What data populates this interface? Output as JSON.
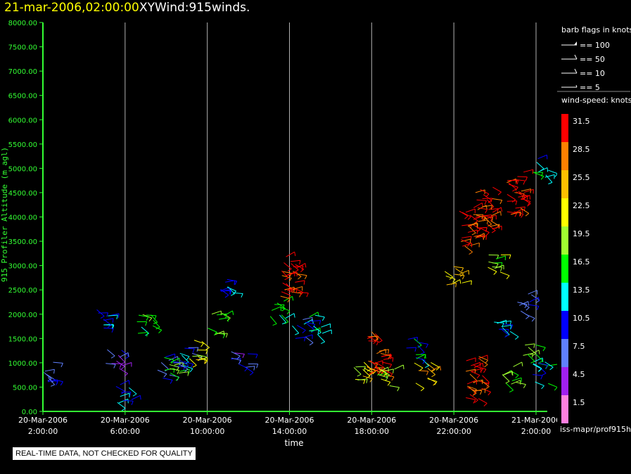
{
  "header": {
    "date": "21-mar-2006,02:00:00",
    "title": "XYWind:915winds."
  },
  "notice": "REAL-TIME DATA, NOT CHECKED FOR QUALITY",
  "source": "iss-mapr/prof915h",
  "colors": {
    "axis": "#33ff33",
    "gridline": "#b0b0b0",
    "notice_bg": "#ffffff"
  },
  "barb_legend": {
    "title": "barb flags in knots",
    "items": [
      "== 100",
      "== 50",
      "== 10",
      "== 5"
    ]
  },
  "speed_legend": {
    "title": "wind-speed: knots",
    "labels": [
      "31.5",
      "28.5",
      "25.5",
      "22.5",
      "19.5",
      "16.5",
      "13.5",
      "10.5",
      "7.5",
      "4.5",
      "1.5"
    ],
    "colors": [
      "#ff0000",
      "#ff8000",
      "#ffc000",
      "#ffff00",
      "#a0ff30",
      "#00ff00",
      "#00ffff",
      "#0000ff",
      "#6080ff",
      "#a020f0",
      "#ff80e0"
    ]
  },
  "chart_data": {
    "type": "scatter",
    "title": "XYWind:915winds.",
    "xlabel": "time",
    "ylabel": "915 Profiler Altitude (m agl)",
    "ylim": [
      0,
      8000
    ],
    "xlim": [
      "20-Mar-2006 2:00:00",
      "21-Mar-2006 3:00:00"
    ],
    "yticks": [
      "0.00",
      "500.00",
      "1000.00",
      "1500.00",
      "2000.00",
      "2500.00",
      "3000.00",
      "3500.00",
      "4000.00",
      "4500.00",
      "5000.00",
      "5500.00",
      "6000.00",
      "6500.00",
      "7000.00",
      "7500.00",
      "8000.00"
    ],
    "xticks": [
      {
        "date": "20-Mar-2006",
        "time": "2:00:00",
        "hours": 0
      },
      {
        "date": "20-Mar-2006",
        "time": "6:00:00",
        "hours": 4
      },
      {
        "date": "20-Mar-2006",
        "time": "10:00:00",
        "hours": 8
      },
      {
        "date": "20-Mar-2006",
        "time": "14:00:00",
        "hours": 12
      },
      {
        "date": "20-Mar-2006",
        "time": "18:00:00",
        "hours": 16
      },
      {
        "date": "20-Mar-2006",
        "time": "22:00:00",
        "hours": 20
      },
      {
        "date": "21-Mar-2006",
        "time": "2:00:00",
        "hours": 24
      }
    ],
    "grid": true,
    "series": [
      {
        "points": [
          {
            "hours": 0.1,
            "alt": 800,
            "speed": 10
          },
          {
            "hours": 3.0,
            "alt": 1900,
            "speed": 12
          },
          {
            "hours": 3.5,
            "alt": 1050,
            "speed": 7
          },
          {
            "hours": 4.0,
            "alt": 400,
            "speed": 12
          },
          {
            "hours": 5.0,
            "alt": 1800,
            "speed": 17
          },
          {
            "hours": 6.0,
            "alt": 900,
            "speed": 9
          },
          {
            "hours": 6.3,
            "alt": 1000,
            "speed": 18
          },
          {
            "hours": 7.0,
            "alt": 1100,
            "speed": 10
          },
          {
            "hours": 7.5,
            "alt": 1250,
            "speed": 22
          },
          {
            "hours": 8.4,
            "alt": 1800,
            "speed": 18
          },
          {
            "hours": 9.0,
            "alt": 2550,
            "speed": 12
          },
          {
            "hours": 9.6,
            "alt": 1100,
            "speed": 8
          },
          {
            "hours": 11.5,
            "alt": 2100,
            "speed": 17
          },
          {
            "hours": 12.0,
            "alt": 2800,
            "speed": 31
          },
          {
            "hours": 12.5,
            "alt": 1700,
            "speed": 10
          },
          {
            "hours": 13.3,
            "alt": 1800,
            "speed": 14
          },
          {
            "hours": 15.5,
            "alt": 800,
            "speed": 22
          },
          {
            "hours": 16.2,
            "alt": 1200,
            "speed": 30
          },
          {
            "hours": 16.7,
            "alt": 700,
            "speed": 19
          },
          {
            "hours": 18.0,
            "alt": 1300,
            "speed": 13
          },
          {
            "hours": 18.5,
            "alt": 800,
            "speed": 25
          },
          {
            "hours": 20.0,
            "alt": 2800,
            "speed": 24
          },
          {
            "hours": 20.7,
            "alt": 3800,
            "speed": 30
          },
          {
            "hours": 21.0,
            "alt": 700,
            "speed": 31
          },
          {
            "hours": 21.5,
            "alt": 4200,
            "speed": 31
          },
          {
            "hours": 22.0,
            "alt": 3000,
            "speed": 20
          },
          {
            "hours": 22.3,
            "alt": 1800,
            "speed": 12
          },
          {
            "hours": 22.7,
            "alt": 700,
            "speed": 20
          },
          {
            "hours": 23.0,
            "alt": 4500,
            "speed": 31
          },
          {
            "hours": 23.4,
            "alt": 2200,
            "speed": 9
          },
          {
            "hours": 23.8,
            "alt": 1200,
            "speed": 16
          },
          {
            "hours": 24.2,
            "alt": 800,
            "speed": 14
          },
          {
            "hours": 24.3,
            "alt": 5000,
            "speed": 14
          }
        ]
      }
    ]
  }
}
